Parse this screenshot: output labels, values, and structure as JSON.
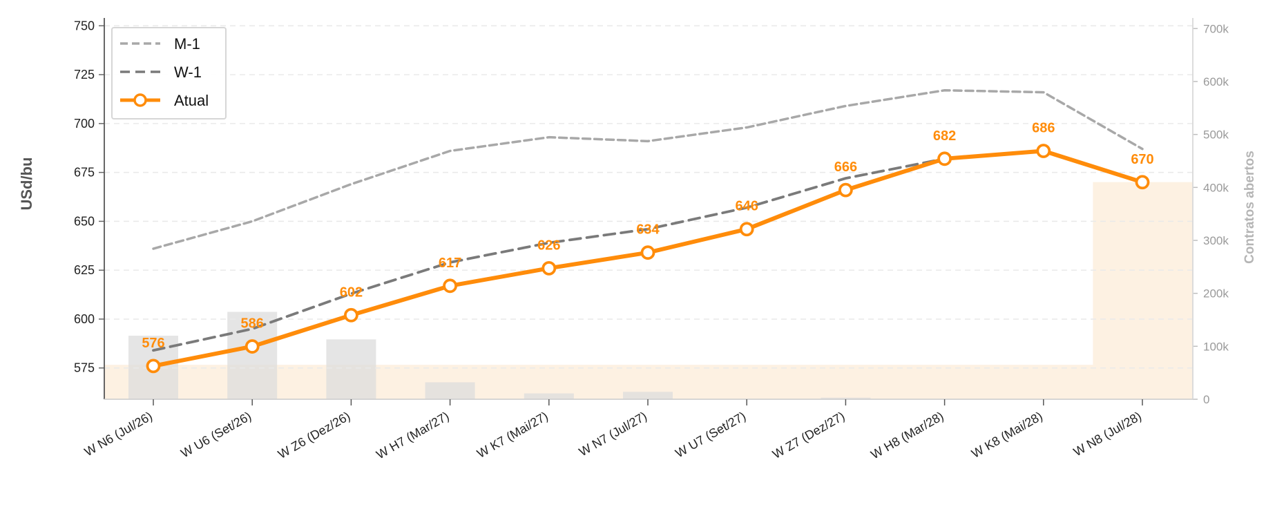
{
  "chart_data": {
    "type": "line",
    "categories": [
      "W N6 (Jul/26)",
      "W U6 (Set/26)",
      "W Z6 (Dez/26)",
      "W H7 (Mar/27)",
      "W K7 (Mai/27)",
      "W N7 (Jul/27)",
      "W U7 (Set/27)",
      "W Z7 (Dez/27)",
      "W H8 (Mar/28)",
      "W K8 (Mai/28)",
      "W N8 (Jul/28)"
    ],
    "series": [
      {
        "name": "M-1",
        "values": [
          636,
          650,
          669,
          686,
          693,
          691,
          698,
          709,
          717,
          716,
          687
        ],
        "color": "#a8a8a8",
        "style": "dashed"
      },
      {
        "name": "W-1",
        "values": [
          584,
          595,
          613,
          629,
          639,
          646,
          657,
          672,
          682,
          null,
          null
        ],
        "color": "#7a7a7a",
        "style": "dashed"
      },
      {
        "name": "Atual",
        "values": [
          576,
          586,
          602,
          617,
          626,
          634,
          646,
          666,
          682,
          686,
          670
        ],
        "color": "#ff8c0a",
        "style": "solid-markers"
      }
    ],
    "bars": {
      "axis": "right",
      "values": [
        120000,
        165000,
        113000,
        32000,
        11000,
        14000,
        0,
        3000,
        0,
        0,
        0
      ],
      "color": "#dcdcdc"
    },
    "area": {
      "axis": "right",
      "values": [
        65000,
        65000,
        65000,
        65000,
        65000,
        65000,
        65000,
        65000,
        65000,
        65000,
        410000,
        410000
      ],
      "color": "#fdf1e2"
    },
    "data_labels": [
      "576",
      "586",
      "602",
      "617",
      "626",
      "634",
      "646",
      "666",
      "682",
      "686",
      "670"
    ],
    "ylabel": "USd/bu",
    "ylabel_right": "Contratos abertos",
    "ylim": [
      559,
      754
    ],
    "ylim_right": [
      0,
      720000
    ],
    "yticks": [
      575,
      600,
      625,
      650,
      675,
      700,
      725,
      750
    ],
    "yticks_right": [
      0,
      100000,
      200000,
      300000,
      400000,
      500000,
      600000,
      700000
    ],
    "yticks_right_labels": [
      "0",
      "100k",
      "200k",
      "300k",
      "400k",
      "500k",
      "600k",
      "700k"
    ],
    "grid": "horizontal-dashed",
    "legend_position": "top-left",
    "legend": [
      "M-1",
      "W-1",
      "Atual"
    ]
  }
}
